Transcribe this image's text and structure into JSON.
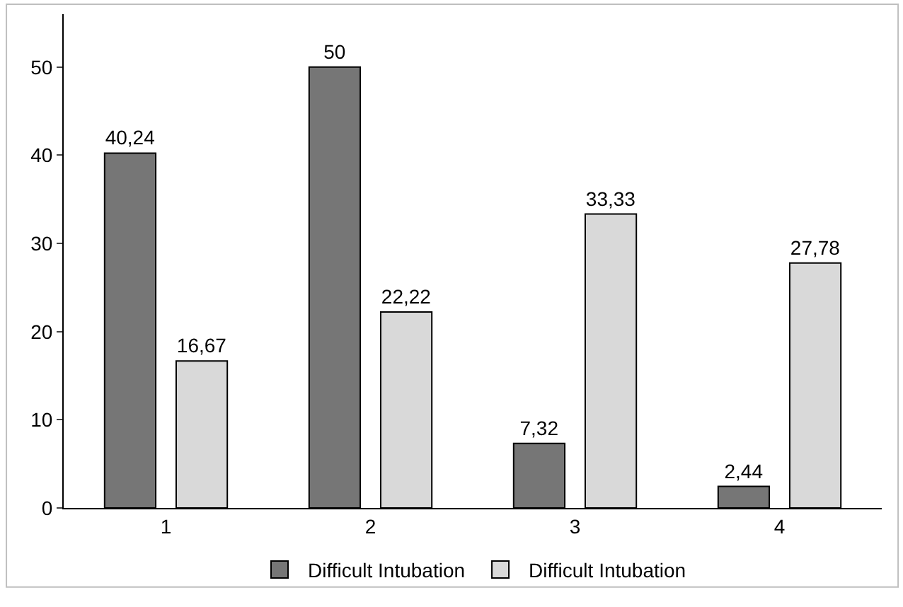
{
  "chart_data": {
    "type": "bar",
    "categories": [
      "1",
      "2",
      "3",
      "4"
    ],
    "series": [
      {
        "name": "Difficult Intubation",
        "color": "#767676",
        "values": [
          40.24,
          50,
          7.32,
          2.44
        ],
        "value_labels": [
          "40,24",
          "50",
          "7,32",
          "2,44"
        ]
      },
      {
        "name": "Difficult Intubation",
        "color": "#d9d9d9",
        "values": [
          16.67,
          22.22,
          33.33,
          27.78
        ],
        "value_labels": [
          "16,67",
          "22,22",
          "33,33",
          "27,78"
        ]
      }
    ],
    "ylim": [
      0,
      56
    ],
    "yticks": [
      0,
      10,
      20,
      30,
      40,
      50
    ],
    "legend": "bottom"
  }
}
